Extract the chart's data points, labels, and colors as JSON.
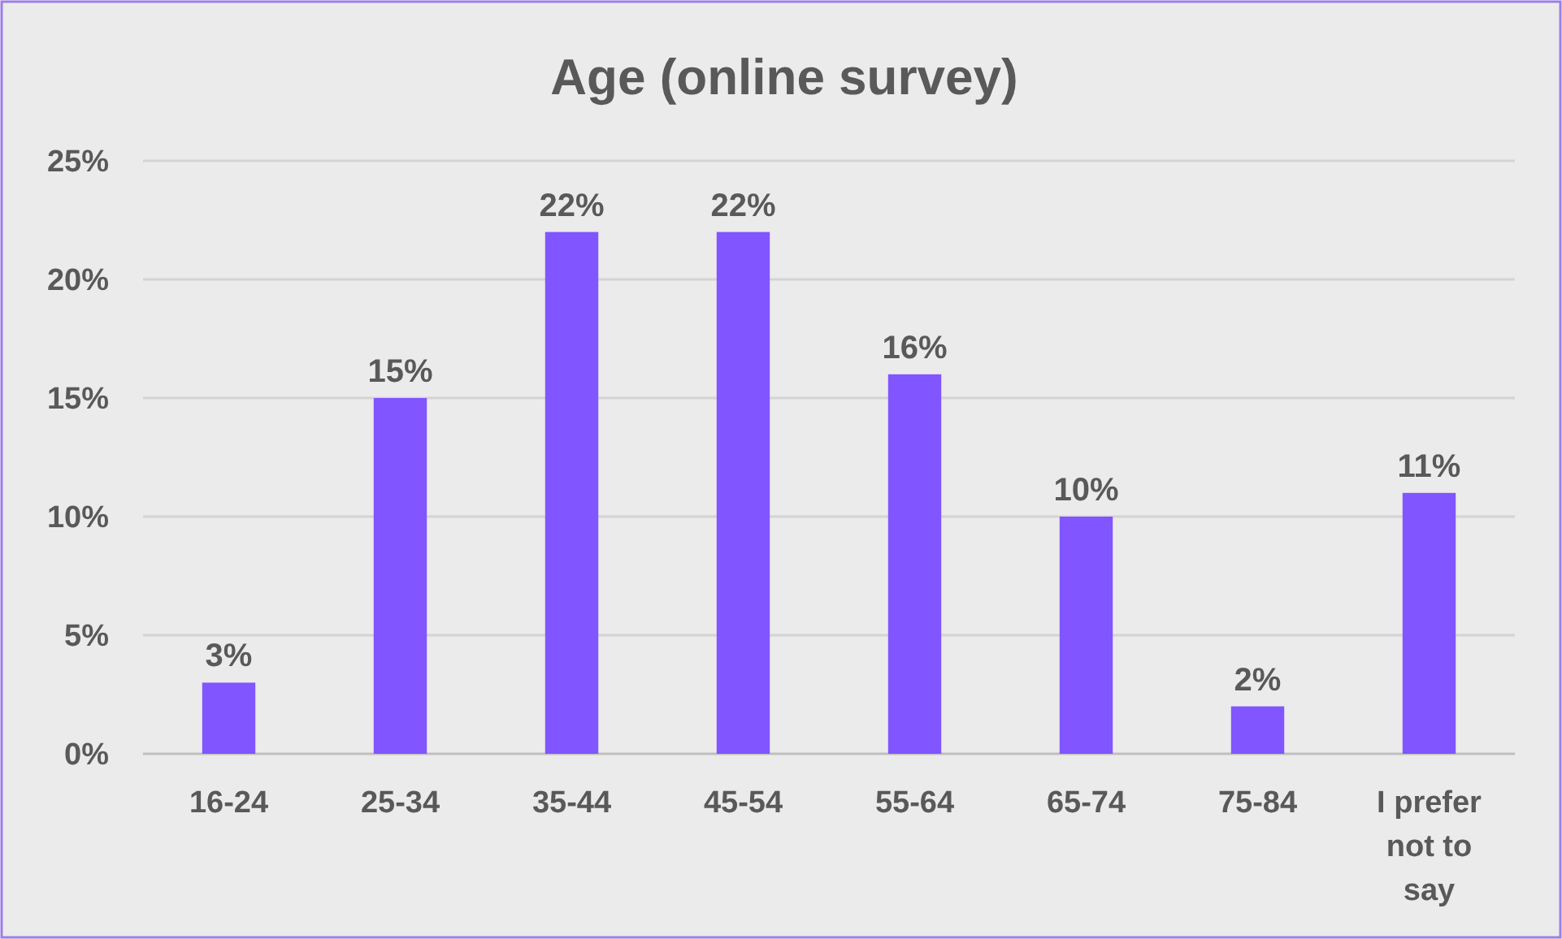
{
  "chart_data": {
    "type": "bar",
    "title": "Age (online survey)",
    "categories": [
      "16-24",
      "25-34",
      "35-44",
      "45-54",
      "55-64",
      "65-74",
      "75-84",
      "I prefer not to say"
    ],
    "values": [
      3,
      15,
      22,
      22,
      16,
      10,
      2,
      11
    ],
    "value_labels": [
      "3%",
      "15%",
      "22%",
      "22%",
      "16%",
      "10%",
      "2%",
      "11%"
    ],
    "color": "#8155ff",
    "ylim": [
      0,
      25
    ],
    "yticks": [
      {
        "value": 0,
        "label": "0%"
      },
      {
        "value": 5,
        "label": "5%"
      },
      {
        "value": 10,
        "label": "10%"
      },
      {
        "value": 15,
        "label": "15%"
      },
      {
        "value": 20,
        "label": "20%"
      },
      {
        "value": 25,
        "label": "25%"
      }
    ],
    "grid": "y"
  }
}
